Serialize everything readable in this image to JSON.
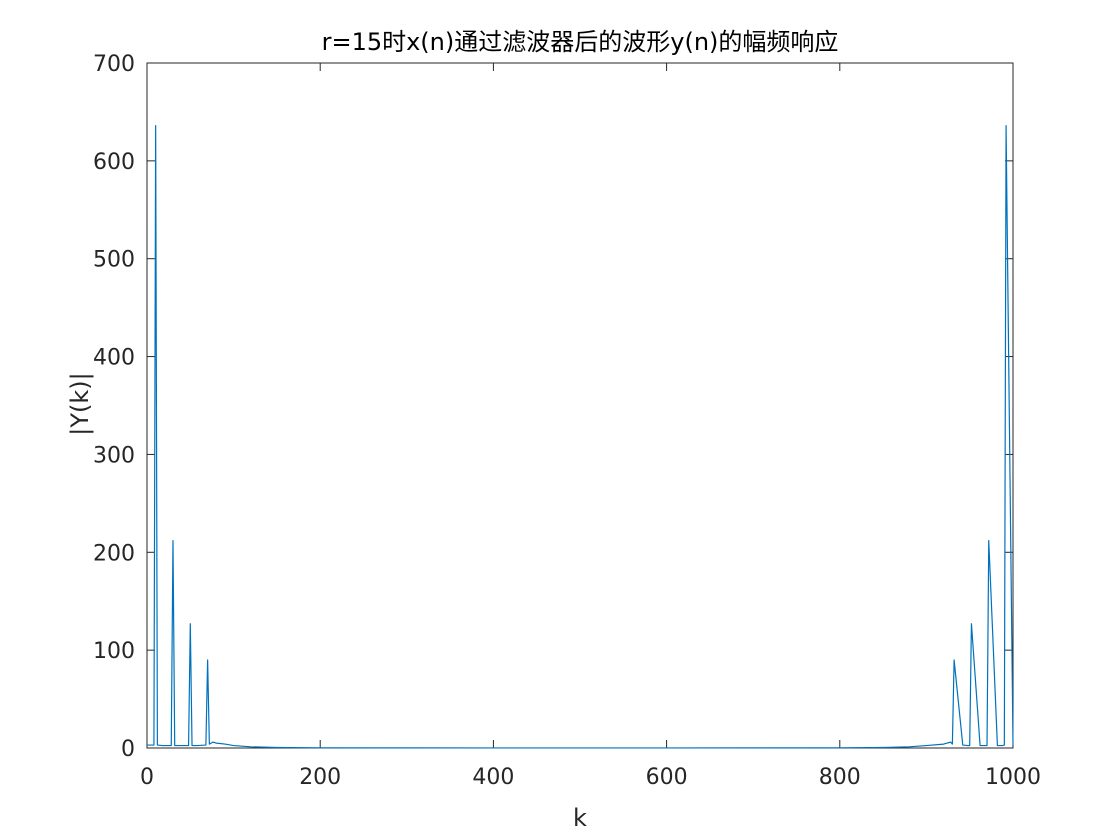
{
  "chart_data": {
    "type": "line",
    "title": "r=15时x(n)通过滤波器后的波形y(n)的幅频响应",
    "xlabel": "k",
    "ylabel": "|Y(k)|",
    "xlim": [
      0,
      1000
    ],
    "ylim": [
      0,
      700
    ],
    "xticks": [
      "0",
      "200",
      "400",
      "600",
      "800",
      "1000"
    ],
    "yticks": [
      "0",
      "100",
      "200",
      "300",
      "400",
      "500",
      "600",
      "700"
    ],
    "grid": false,
    "legend": "none",
    "series_color": "#0072BD",
    "series": [
      {
        "x": [
          0,
          8,
          10,
          12,
          18,
          28,
          30,
          32,
          38,
          48,
          50,
          52,
          58,
          68,
          70,
          72,
          76,
          80,
          90,
          100,
          120,
          150,
          200,
          300,
          400,
          500,
          600,
          700,
          800,
          850,
          880,
          900,
          920,
          924,
          928,
          930,
          932,
          942,
          948,
          950,
          952,
          962,
          968,
          970,
          972,
          982,
          988,
          990,
          992,
          1000
        ],
        "y": [
          3,
          3,
          636,
          3,
          2.5,
          2.5,
          212,
          2.5,
          2.5,
          2.5,
          127,
          2.5,
          2.5,
          3,
          90,
          4,
          6,
          5,
          4,
          2.5,
          1.2,
          0.5,
          0.2,
          0.1,
          0.05,
          0.05,
          0.05,
          0.1,
          0.2,
          0.5,
          1.2,
          2.5,
          4,
          5,
          6,
          4,
          90,
          3,
          2.5,
          2.5,
          127,
          2.5,
          2.5,
          2.5,
          212,
          2.5,
          2.5,
          3,
          636,
          3
        ]
      }
    ]
  }
}
